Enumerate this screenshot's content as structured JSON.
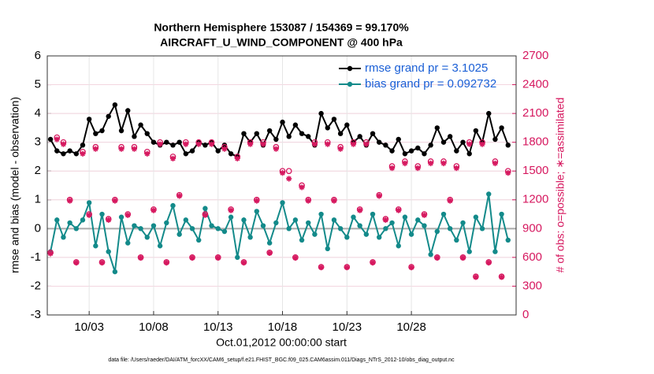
{
  "chart_data": {
    "type": "line",
    "title": "Northern Hemisphere 153087 / 154369 = 99.170%",
    "subtitle": "AIRCRAFT_U_WIND_COMPONENT @ 400 hPa",
    "y_label": "rmse and bias (model - observation)",
    "y2_label": "# of obs: o=possible; ∗=assimilated",
    "x_label": "Oct.01,2012 00:00:00 start",
    "footnote": "data file: /Users/raeder/DAI/ATM_forcXX/CAM6_setup/f.e21.FHIST_BGC.f09_025.CAM6assim.011/Diags_NTrS_2012-10/obs_diag_output.nc",
    "x": [
      -1,
      -0.5,
      0,
      0.5,
      1,
      1.5,
      2,
      2.5,
      3,
      3.5,
      4,
      4.5,
      5,
      5.5,
      6,
      6.5,
      7,
      7.5,
      8,
      8.5,
      9,
      9.5,
      10,
      10.5,
      11,
      11.5,
      12,
      12.5,
      13,
      13.5,
      14,
      14.5,
      15,
      15.5,
      16,
      16.5,
      17,
      17.5,
      18,
      18.5,
      19,
      19.5,
      20,
      20.5,
      21,
      21.5,
      22,
      22.5,
      23,
      23.5,
      24,
      24.5,
      25,
      25.5,
      26,
      26.5,
      27,
      27.5,
      28,
      28.5,
      29,
      29.5,
      30,
      30.5,
      31,
      31.5,
      32,
      32.5,
      33,
      33.5,
      34,
      34.5
    ],
    "xlim": [
      -1.25,
      35.125
    ],
    "xticks": [
      {
        "value": 2,
        "label": "10/03"
      },
      {
        "value": 7,
        "label": "10/08"
      },
      {
        "value": 12,
        "label": "10/13"
      },
      {
        "value": 17,
        "label": "10/18"
      },
      {
        "value": 22,
        "label": "10/23"
      },
      {
        "value": 27,
        "label": "10/28"
      }
    ],
    "ylim": [
      -3,
      6
    ],
    "yticks": [
      -3,
      -2,
      -1,
      0,
      1,
      2,
      3,
      4,
      5,
      6
    ],
    "y2lim": [
      0,
      2700
    ],
    "y2ticks": [
      0,
      300,
      600,
      900,
      1200,
      1500,
      1800,
      2100,
      2400,
      2700
    ],
    "grid": true,
    "legend": "upper right",
    "series": [
      {
        "name": "rmse grand pr = 3.1025",
        "color": "#000000",
        "marker": "filled-circle",
        "values": [
          3.1,
          2.7,
          2.6,
          2.7,
          2.6,
          2.9,
          3.8,
          3.3,
          3.4,
          3.9,
          4.3,
          3.4,
          4.1,
          3.2,
          3.6,
          3.3,
          3.0,
          2.9,
          3.0,
          2.9,
          3.0,
          2.6,
          2.7,
          3.0,
          2.9,
          3.0,
          2.7,
          2.9,
          2.6,
          2.5,
          3.3,
          3.0,
          3.3,
          2.9,
          3.4,
          3.1,
          3.7,
          3.2,
          3.6,
          3.3,
          3.2,
          2.9,
          4.0,
          3.5,
          3.8,
          3.3,
          3.6,
          3.0,
          3.2,
          2.9,
          3.3,
          3.0,
          2.9,
          2.7,
          3.1,
          2.6,
          2.7,
          2.8,
          2.6,
          2.9,
          3.5,
          3.0,
          3.2,
          2.7,
          3.0,
          2.6,
          3.4,
          3.0,
          4.0,
          3.1,
          3.5,
          2.9
        ]
      },
      {
        "name": "bias grand pr = 0.092732",
        "color": "#138a8a",
        "marker": "filled-circle",
        "values": [
          -0.8,
          0.3,
          -0.3,
          0.2,
          0.0,
          0.3,
          0.9,
          -0.6,
          0.5,
          -0.8,
          -1.5,
          0.4,
          -0.5,
          0.1,
          0.0,
          -0.3,
          0.1,
          -0.6,
          0.2,
          0.8,
          -0.2,
          0.3,
          0.0,
          -0.4,
          0.7,
          0.1,
          0.0,
          -0.1,
          0.4,
          -1.0,
          0.3,
          -0.3,
          0.6,
          0.1,
          -0.5,
          0.2,
          0.9,
          0.0,
          0.3,
          -0.4,
          0.2,
          -0.2,
          0.5,
          -0.7,
          0.3,
          0.0,
          -0.3,
          0.4,
          0.1,
          -0.2,
          0.5,
          -0.3,
          0.0,
          0.2,
          -0.6,
          0.4,
          -0.2,
          0.3,
          0.1,
          -0.9,
          -0.1,
          0.5,
          0.0,
          -0.4,
          0.2,
          -0.8,
          0.4,
          0.0,
          1.2,
          -0.8,
          0.5,
          -0.4
        ]
      },
      {
        "color": "#d6185f",
        "axis": "y2",
        "marker": "circle",
        "values": [
          650,
          1850,
          1800,
          1200,
          550,
          1700,
          1050,
          1750,
          550,
          1000,
          1200,
          1750,
          1050,
          1750,
          600,
          1700,
          1100,
          1800,
          550,
          1650,
          1250,
          1800,
          600,
          1800,
          1050,
          1800,
          600,
          1750,
          1100,
          1650,
          550,
          1800,
          1200,
          1800,
          650,
          1750,
          1500,
          1500,
          600,
          1350,
          1200,
          1800,
          500,
          1800,
          1200,
          1750,
          500,
          1800,
          1100,
          1800,
          550,
          1250,
          1000,
          1550,
          1100,
          1600,
          500,
          1550,
          1050,
          1600,
          600,
          1600,
          1200,
          1550,
          600,
          1800,
          400,
          1800,
          550,
          1600,
          400,
          1500
        ]
      },
      {
        "color": "#d6185f",
        "axis": "y2",
        "marker": "star",
        "values": [
          640,
          1830,
          1780,
          1190,
          545,
          1680,
          1040,
          1730,
          545,
          990,
          1190,
          1730,
          1040,
          1730,
          595,
          1680,
          1090,
          1780,
          545,
          1630,
          1240,
          1780,
          595,
          1780,
          1040,
          1780,
          595,
          1730,
          1090,
          1630,
          545,
          1780,
          1190,
          1780,
          645,
          1730,
          1480,
          1420,
          595,
          1330,
          1190,
          1780,
          495,
          1780,
          1190,
          1730,
          495,
          1780,
          1090,
          1780,
          545,
          1240,
          990,
          1530,
          1090,
          1580,
          495,
          1530,
          1040,
          1580,
          595,
          1580,
          1190,
          1530,
          595,
          1780,
          395,
          1780,
          545,
          1580,
          395,
          1480
        ]
      }
    ]
  }
}
